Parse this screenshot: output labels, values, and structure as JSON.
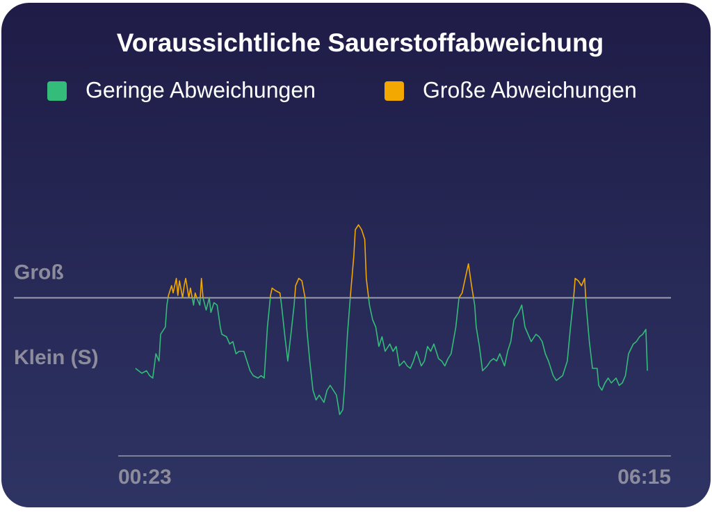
{
  "chart_data": {
    "type": "line",
    "title": "Voraussichtliche Sauerstoffabweichung",
    "legend": [
      {
        "name": "Geringe Abweichungen",
        "color": "#34bc7a"
      },
      {
        "name": "Große Abweichungen",
        "color": "#f2a800"
      }
    ],
    "threshold": 65,
    "xlim": [
      0,
      352
    ],
    "xticks": [
      {
        "value": 0,
        "label": "00:23"
      },
      {
        "value": 352,
        "label": "06:15"
      }
    ],
    "ylim": [
      0,
      100
    ],
    "yticks": [
      {
        "value": 75,
        "label": "Groß"
      },
      {
        "value": 40,
        "label": "Klein (S)"
      }
    ],
    "x": [
      11,
      13,
      15,
      18,
      20,
      22,
      24,
      26,
      27,
      30,
      31,
      32,
      34,
      35,
      37,
      38,
      39,
      41,
      42,
      43,
      45,
      46,
      48,
      49,
      50,
      52,
      53,
      54,
      56,
      58,
      59,
      61,
      63,
      65,
      66,
      69,
      71,
      73,
      75,
      77,
      80,
      82,
      84,
      86,
      89,
      91,
      93,
      95,
      97,
      98,
      100,
      103,
      104,
      106,
      108,
      110,
      112,
      113,
      115,
      117,
      119,
      120,
      122,
      124,
      126,
      128,
      131,
      133,
      135,
      137,
      139,
      141,
      143,
      144,
      146,
      148,
      150,
      151,
      153,
      155,
      157,
      158,
      160,
      162,
      164,
      166,
      168,
      170,
      173,
      175,
      177,
      179,
      182,
      184,
      186,
      188,
      190,
      193,
      195,
      197,
      199,
      201,
      204,
      206,
      208,
      210,
      212,
      215,
      217,
      219,
      221,
      223,
      225,
      227,
      228,
      230,
      232,
      235,
      237,
      239,
      241,
      243,
      246,
      248,
      250,
      252,
      255,
      257,
      259,
      261,
      263,
      266,
      268,
      270,
      272,
      274,
      277,
      279,
      281,
      283,
      286,
      288,
      290,
      291,
      293,
      295,
      297,
      298,
      300,
      302,
      305,
      306,
      308,
      310,
      312,
      314,
      317,
      319,
      321,
      323,
      325,
      328,
      330,
      332,
      334,
      336,
      337
    ],
    "values": [
      36,
      35,
      34,
      35,
      33,
      32,
      42,
      39,
      50,
      53,
      62,
      66,
      70,
      67,
      73,
      66,
      72,
      65,
      70,
      73,
      65,
      69,
      62,
      67,
      65,
      62,
      73,
      65,
      60,
      65,
      59,
      63,
      62,
      53,
      50,
      49,
      46,
      47,
      42,
      43,
      43,
      39,
      35,
      33,
      32,
      33,
      32,
      53,
      66,
      69,
      68,
      67,
      62,
      50,
      39,
      50,
      62,
      70,
      73,
      72,
      65,
      53,
      39,
      27,
      23,
      25,
      22,
      27,
      29,
      27,
      25,
      17,
      19,
      27,
      50,
      67,
      82,
      93,
      95,
      93,
      89,
      73,
      62,
      56,
      53,
      45,
      49,
      43,
      46,
      43,
      45,
      37,
      39,
      37,
      36,
      39,
      43,
      37,
      39,
      45,
      43,
      46,
      40,
      39,
      37,
      40,
      42,
      53,
      65,
      67,
      73,
      79,
      70,
      62,
      53,
      45,
      35,
      37,
      39,
      40,
      39,
      42,
      37,
      43,
      47,
      56,
      59,
      62,
      53,
      50,
      47,
      50,
      49,
      47,
      42,
      39,
      33,
      31,
      32,
      33,
      39,
      53,
      65,
      73,
      72,
      70,
      73,
      62,
      47,
      36,
      36,
      29,
      27,
      30,
      32,
      30,
      32,
      29,
      30,
      33,
      42,
      46,
      47,
      49,
      50,
      52,
      35
    ]
  }
}
